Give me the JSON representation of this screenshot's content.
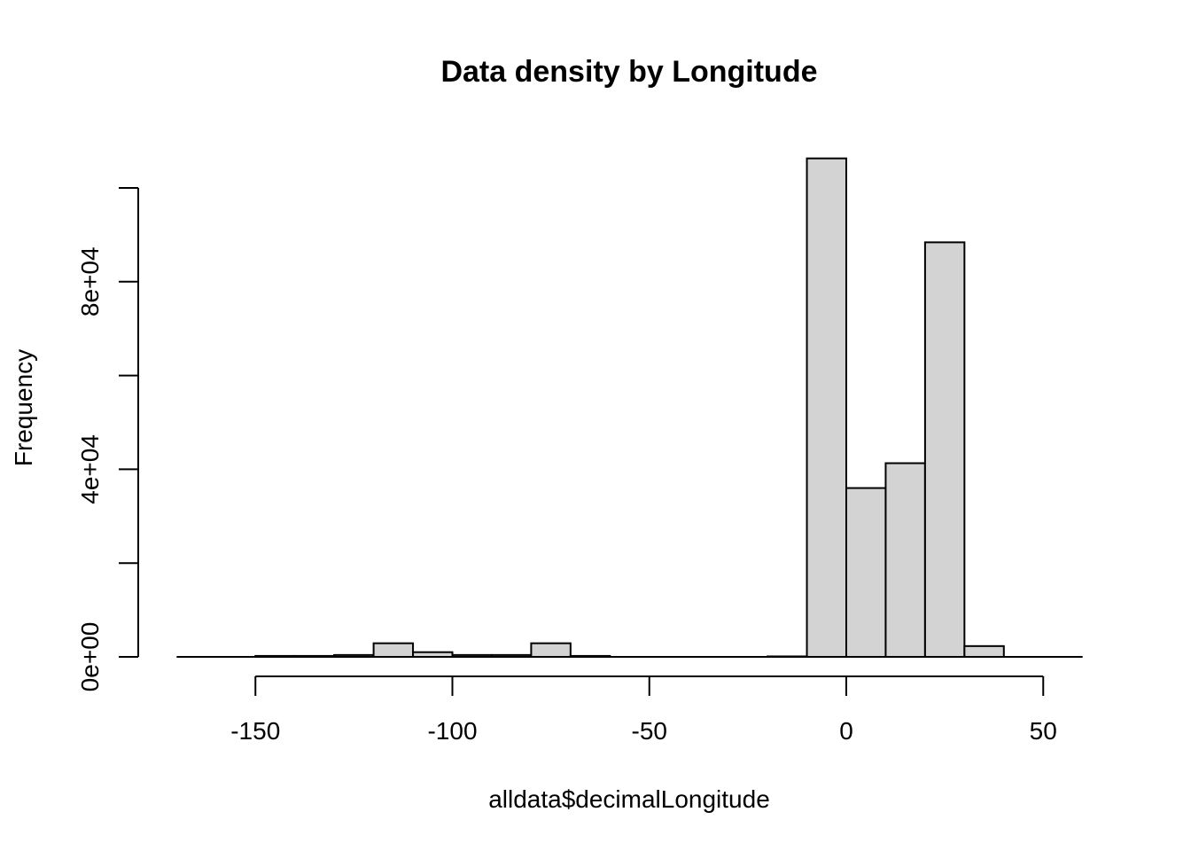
{
  "chart_data": {
    "type": "bar",
    "title": "Data density by Longitude",
    "xlabel": "alldata$decimalLongitude",
    "ylabel": "Frequency",
    "bar_color": "#d3d3d3",
    "edge_color": "#000000",
    "xlim": [
      -170,
      60
    ],
    "ylim": [
      0,
      100000
    ],
    "x_ticks": [
      -150,
      -100,
      -50,
      0,
      50
    ],
    "y_ticks": [
      0,
      20000,
      40000,
      60000,
      80000,
      100000
    ],
    "y_tick_labels": [
      "0e+00",
      "",
      "4e+04",
      "",
      "8e+04",
      ""
    ],
    "bins": [
      {
        "from": -170,
        "to": -160,
        "count": 0
      },
      {
        "from": -160,
        "to": -150,
        "count": 0
      },
      {
        "from": -150,
        "to": -140,
        "count": 200
      },
      {
        "from": -140,
        "to": -130,
        "count": 200
      },
      {
        "from": -130,
        "to": -120,
        "count": 400
      },
      {
        "from": -120,
        "to": -110,
        "count": 2900
      },
      {
        "from": -110,
        "to": -100,
        "count": 1000
      },
      {
        "from": -100,
        "to": -90,
        "count": 400
      },
      {
        "from": -90,
        "to": -80,
        "count": 400
      },
      {
        "from": -80,
        "to": -70,
        "count": 2900
      },
      {
        "from": -70,
        "to": -60,
        "count": 200
      },
      {
        "from": -60,
        "to": -50,
        "count": 0
      },
      {
        "from": -50,
        "to": -40,
        "count": 0
      },
      {
        "from": -40,
        "to": -30,
        "count": 0
      },
      {
        "from": -30,
        "to": -20,
        "count": 0
      },
      {
        "from": -20,
        "to": -10,
        "count": 100
      },
      {
        "from": -10,
        "to": 0,
        "count": 106300
      },
      {
        "from": 0,
        "to": 10,
        "count": 36000
      },
      {
        "from": 10,
        "to": 20,
        "count": 41300
      },
      {
        "from": 20,
        "to": 30,
        "count": 88400
      },
      {
        "from": 30,
        "to": 40,
        "count": 2300
      },
      {
        "from": 40,
        "to": 50,
        "count": 0
      },
      {
        "from": 50,
        "to": 60,
        "count": 0
      }
    ]
  }
}
